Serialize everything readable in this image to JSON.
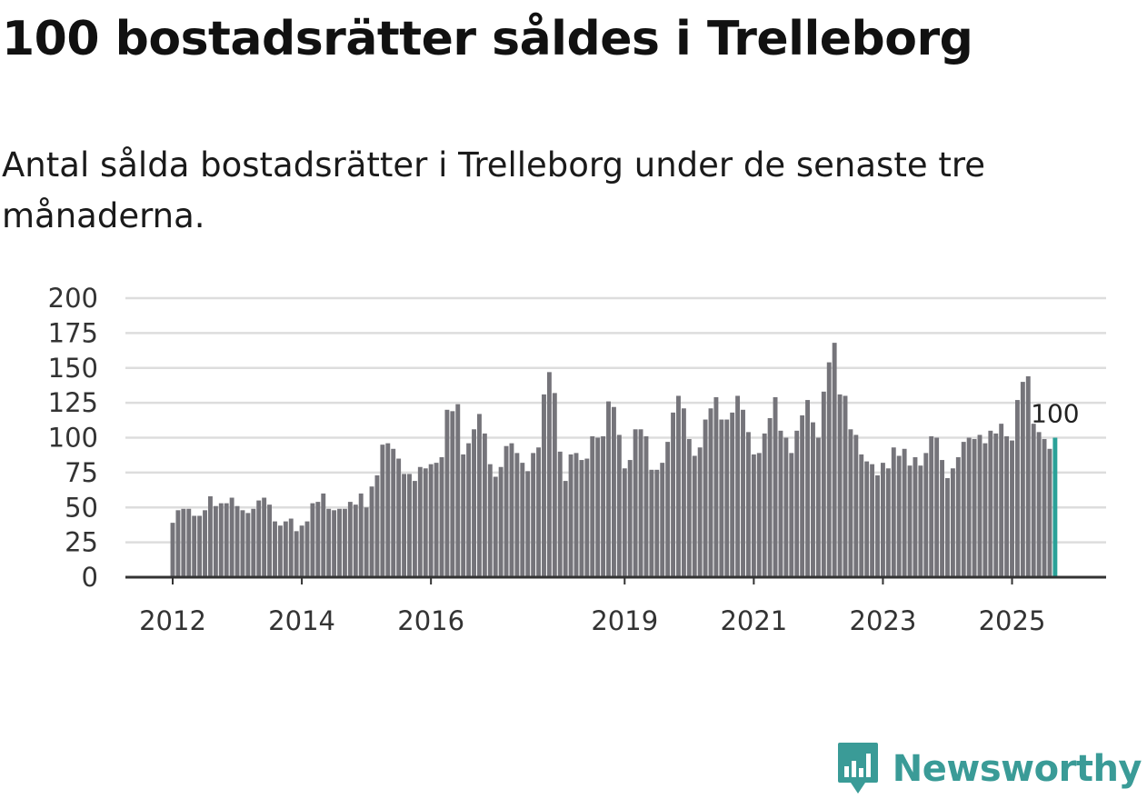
{
  "header": {
    "title": "100 bostadsrätter såldes i Trelleborg",
    "subtitle": "Antal sålda bostadsrätter i Trelleborg under de senaste tre månaderna."
  },
  "brand": {
    "name": "Newsworthy",
    "icon": "newsworthy-logo-icon"
  },
  "colors": {
    "bar": "#75747a",
    "highlight": "#2aa198",
    "grid": "#dddddd",
    "axis": "#333333",
    "brand": "#3a9b97"
  },
  "chart_data": {
    "type": "bar",
    "title": "100 bostadsrätter såldes i Trelleborg",
    "xlabel": "",
    "ylabel": "",
    "ylim": [
      0,
      200
    ],
    "yticks": [
      0,
      25,
      50,
      75,
      100,
      125,
      150,
      175,
      200
    ],
    "xticks": [
      {
        "label": "2012",
        "index": 0
      },
      {
        "label": "2014",
        "index": 24
      },
      {
        "label": "2016",
        "index": 48
      },
      {
        "label": "2019",
        "index": 84
      },
      {
        "label": "2021",
        "index": 108
      },
      {
        "label": "2023",
        "index": 132
      },
      {
        "label": "2025",
        "index": 156
      }
    ],
    "grid": true,
    "annotation": {
      "label": "100",
      "index": 164
    },
    "values": [
      39,
      48,
      49,
      49,
      44,
      44,
      48,
      58,
      51,
      53,
      53,
      57,
      51,
      48,
      46,
      49,
      55,
      57,
      52,
      40,
      37,
      40,
      42,
      33,
      37,
      40,
      53,
      54,
      60,
      49,
      48,
      49,
      49,
      54,
      52,
      60,
      50,
      65,
      73,
      95,
      96,
      92,
      85,
      74,
      74,
      69,
      79,
      78,
      81,
      82,
      86,
      120,
      119,
      124,
      88,
      96,
      106,
      117,
      103,
      81,
      72,
      79,
      94,
      96,
      89,
      82,
      76,
      89,
      93,
      131,
      147,
      132,
      90,
      69,
      88,
      89,
      84,
      85,
      101,
      100,
      101,
      126,
      122,
      102,
      78,
      84,
      106,
      106,
      101,
      77,
      77,
      82,
      97,
      118,
      130,
      121,
      99,
      87,
      93,
      113,
      121,
      129,
      113,
      113,
      118,
      130,
      120,
      104,
      88,
      89,
      103,
      114,
      129,
      105,
      100,
      89,
      105,
      116,
      127,
      111,
      100,
      133,
      154,
      168,
      131,
      130,
      106,
      102,
      88,
      83,
      81,
      73,
      82,
      78,
      93,
      87,
      92,
      80,
      86,
      80,
      89,
      101,
      100,
      84,
      71,
      78,
      86,
      97,
      100,
      99,
      102,
      96,
      105,
      103,
      110,
      101,
      98,
      127,
      140,
      144,
      110,
      104,
      99,
      92,
      100
    ]
  }
}
